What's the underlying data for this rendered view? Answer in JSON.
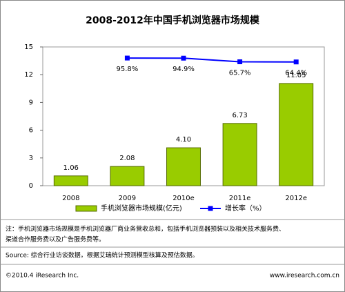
{
  "chart_data": {
    "type": "bar",
    "title": "2008-2012年中国手机浏览器市场规模",
    "categories": [
      "2008",
      "2009",
      "2010e",
      "2011e",
      "2012e"
    ],
    "series": [
      {
        "name": "手机浏览器市场规模(亿元)",
        "type": "bar",
        "color": "#99cc00",
        "values": [
          1.06,
          2.08,
          4.1,
          6.73,
          11.05
        ],
        "value_labels": [
          "1.06",
          "2.08",
          "4.10",
          "6.73",
          "11.05"
        ]
      },
      {
        "name": "增长率（%）",
        "type": "line",
        "axis": "y2",
        "color": "#0000ff",
        "values": [
          null,
          95.8,
          94.9,
          65.7,
          64.4
        ],
        "value_labels": [
          null,
          "95.8%",
          "94.9%",
          "65.7%",
          "64.4%"
        ]
      }
    ],
    "ylim": [
      0,
      15
    ],
    "yticks": [
      0,
      3,
      6,
      9,
      12,
      15
    ],
    "y2lim": [
      -930,
      185
    ],
    "notes": [
      "注：手机浏览器市场规模是手机浏览器厂商业务营收总和，包括手机浏览器预装以及相关技术服务费、",
      "渠道合作服务费以及广告服务费等。"
    ],
    "source": "Source: 综合行业访谈数据，根据艾瑞统计预测模型核算及预估数据。",
    "footer_left": "©2010.4 iResearch Inc.",
    "footer_right": "www.iresearch.com.cn"
  }
}
